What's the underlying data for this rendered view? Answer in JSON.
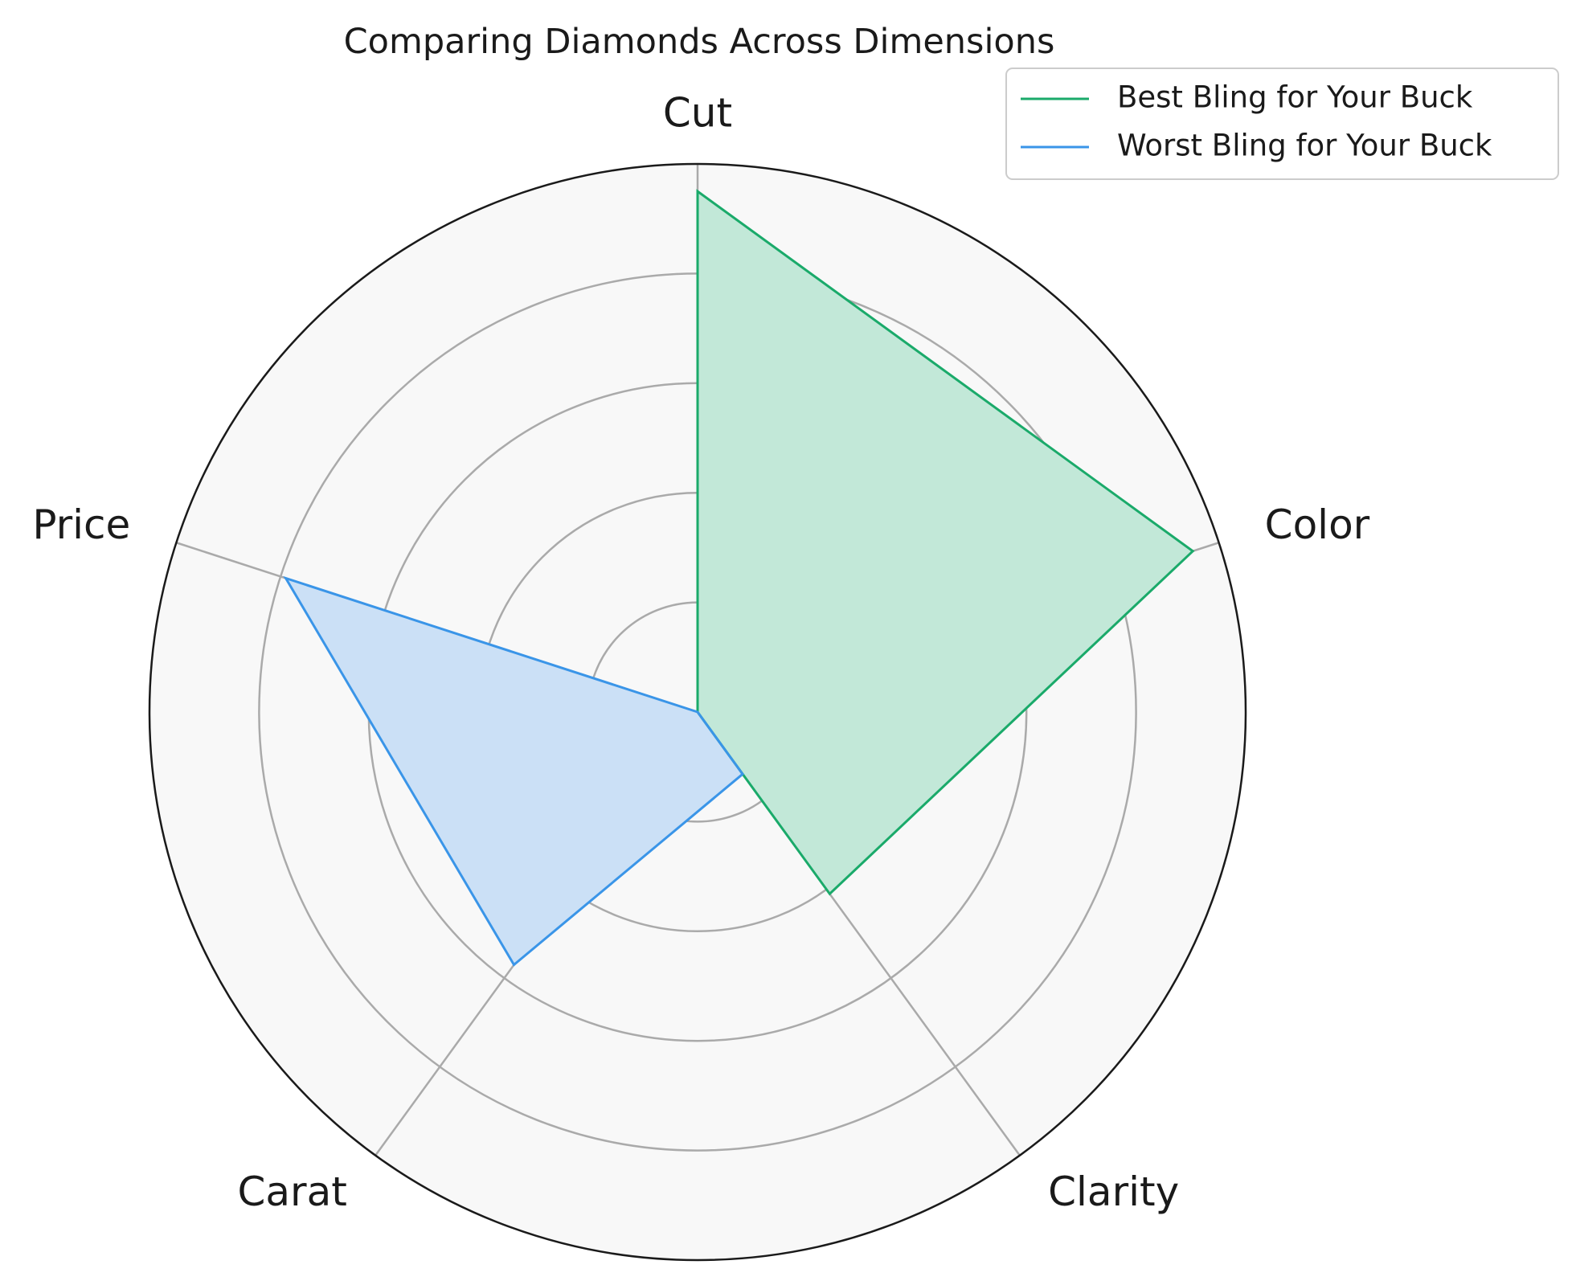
{
  "chart_data": {
    "type": "radar",
    "title": "Comparing Diamonds Across Dimensions",
    "axes": [
      "Cut",
      "Color",
      "Clarity",
      "Carat",
      "Price"
    ],
    "rlim": [
      0,
      1
    ],
    "rings": [
      0.2,
      0.4,
      0.6,
      0.8
    ],
    "grid": true,
    "legend_position": "top-right",
    "series": [
      {
        "name": "Best Bling for Your Buck",
        "values": [
          0.95,
          0.95,
          0.41,
          0.0,
          0.0
        ],
        "color": "#1aaa6a",
        "fill": "#c2e8d8"
      },
      {
        "name": "Worst Bling for Your Buck",
        "values": [
          0.0,
          0.0,
          0.14,
          0.57,
          0.79
        ],
        "color": "#3a95e8",
        "fill": "#cbe0f6"
      }
    ]
  }
}
